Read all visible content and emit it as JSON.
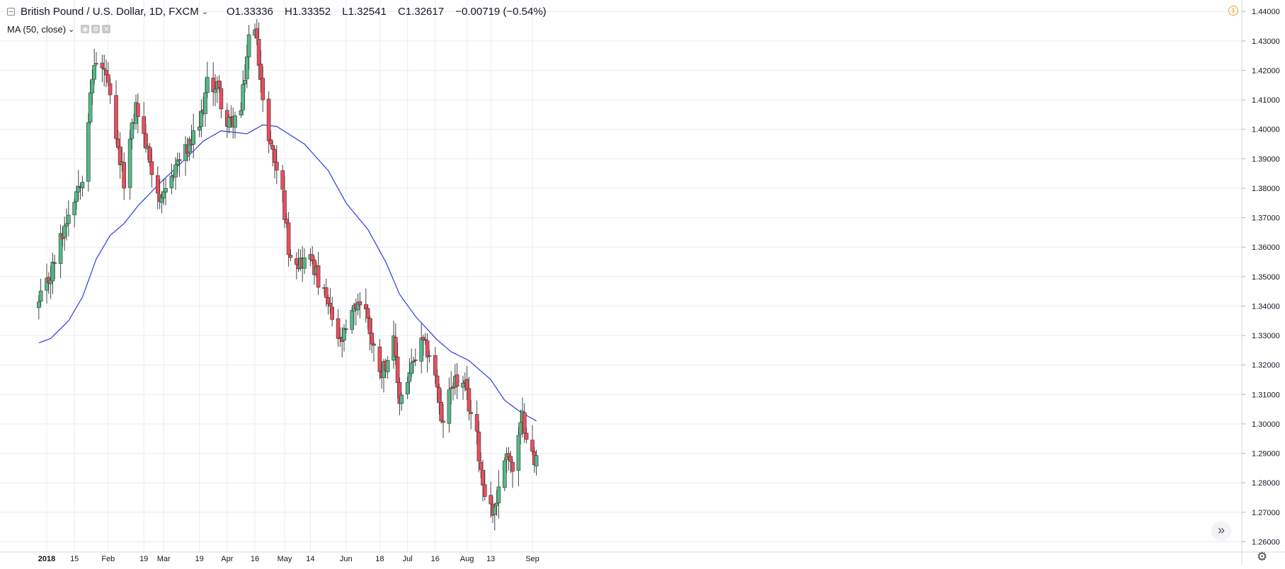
{
  "header": {
    "symbol": "British Pound / U.S. Dollar, 1D, FXCM",
    "open": "O1.33336",
    "high": "H1.33352",
    "low": "L1.32541",
    "close": "C1.32617",
    "change": "−0.00719 (−0.54%)"
  },
  "indicator": {
    "label": "MA (50, close)"
  },
  "colors": {
    "up": "#53b987",
    "down": "#eb4d5c",
    "ma": "#2b3ae0",
    "grid": "#e9ecf2",
    "text": "#131722"
  },
  "icons": {
    "collapse": "collapse-icon",
    "chevron": "chevron-down-icon",
    "warning": "warning-icon",
    "scroll": "double-chevron-right-icon",
    "settings": "gear-icon"
  },
  "chart_data": {
    "type": "candlestick",
    "ylim": [
      1.2565,
      1.4415
    ],
    "y_ticks": [
      "1.44000",
      "1.43000",
      "1.42000",
      "1.41000",
      "1.40000",
      "1.39000",
      "1.38000",
      "1.37000",
      "1.36000",
      "1.35000",
      "1.34000",
      "1.33000",
      "1.32000",
      "1.31000",
      "1.30000",
      "1.29000",
      "1.28000",
      "1.27000",
      "1.26000"
    ],
    "x_labels": [
      {
        "label": "2018",
        "date": "2018-01-01"
      },
      {
        "label": "15",
        "date": "2018-01-15"
      },
      {
        "label": "Feb",
        "date": "2018-02-01"
      },
      {
        "label": "19",
        "date": "2018-02-19"
      },
      {
        "label": "Mar",
        "date": "2018-03-01"
      },
      {
        "label": "19",
        "date": "2018-03-19"
      },
      {
        "label": "Apr",
        "date": "2018-04-02"
      },
      {
        "label": "16",
        "date": "2018-04-16"
      },
      {
        "label": "May",
        "date": "2018-05-01"
      },
      {
        "label": "14",
        "date": "2018-05-14"
      },
      {
        "label": "Jun",
        "date": "2018-06-01"
      },
      {
        "label": "18",
        "date": "2018-06-18"
      },
      {
        "label": "Jul",
        "date": "2018-07-02"
      },
      {
        "label": "16",
        "date": "2018-07-16"
      },
      {
        "label": "Aug",
        "date": "2018-08-01"
      },
      {
        "label": "13",
        "date": "2018-08-13"
      },
      {
        "label": "Sep",
        "date": "2018-09-03"
      }
    ],
    "anchors": [
      [
        "2017-12-28",
        1.3405
      ],
      [
        "2018-01-03",
        1.3505
      ],
      [
        "2018-01-12",
        1.372
      ],
      [
        "2018-01-19",
        1.385
      ],
      [
        "2018-01-25",
        1.423
      ],
      [
        "2018-01-31",
        1.4185
      ],
      [
        "2018-02-05",
        1.395
      ],
      [
        "2018-02-09",
        1.383
      ],
      [
        "2018-02-15",
        1.408
      ],
      [
        "2018-02-21",
        1.392
      ],
      [
        "2018-02-28",
        1.374
      ],
      [
        "2018-03-07",
        1.388
      ],
      [
        "2018-03-14",
        1.394
      ],
      [
        "2018-03-19",
        1.401
      ],
      [
        "2018-03-23",
        1.415
      ],
      [
        "2018-03-28",
        1.415
      ],
      [
        "2018-04-02",
        1.401
      ],
      [
        "2018-04-09",
        1.406
      ],
      [
        "2018-04-13",
        1.431
      ],
      [
        "2018-04-17",
        1.433
      ],
      [
        "2018-04-20",
        1.408
      ],
      [
        "2018-04-24",
        1.395
      ],
      [
        "2018-04-30",
        1.378
      ],
      [
        "2018-05-03",
        1.36
      ],
      [
        "2018-05-08",
        1.355
      ],
      [
        "2018-05-15",
        1.356
      ],
      [
        "2018-05-18",
        1.348
      ],
      [
        "2018-05-22",
        1.342
      ],
      [
        "2018-05-29",
        1.327
      ],
      [
        "2018-06-01",
        1.331
      ],
      [
        "2018-06-07",
        1.342
      ],
      [
        "2018-06-12",
        1.337
      ],
      [
        "2018-06-14",
        1.327
      ],
      [
        "2018-06-19",
        1.318
      ],
      [
        "2018-06-25",
        1.327
      ],
      [
        "2018-06-28",
        1.308
      ],
      [
        "2018-07-03",
        1.317
      ],
      [
        "2018-07-09",
        1.327
      ],
      [
        "2018-07-13",
        1.324
      ],
      [
        "2018-07-17",
        1.313
      ],
      [
        "2018-07-19",
        1.299
      ],
      [
        "2018-07-25",
        1.315
      ],
      [
        "2018-07-31",
        1.312
      ],
      [
        "2018-08-06",
        1.295
      ],
      [
        "2018-08-09",
        1.28
      ],
      [
        "2018-08-14",
        1.27
      ],
      [
        "2018-08-17",
        1.277
      ],
      [
        "2018-08-21",
        1.292
      ],
      [
        "2018-08-24",
        1.284
      ],
      [
        "2018-08-29",
        1.302
      ],
      [
        "2018-08-31",
        1.2975
      ],
      [
        "2018-09-04",
        1.286
      ],
      [
        "2018-09-05",
        1.288
      ]
    ],
    "ma_anchors": [
      [
        "2017-12-28",
        1.3275
      ],
      [
        "2018-01-03",
        1.329
      ],
      [
        "2018-01-12",
        1.335
      ],
      [
        "2018-01-19",
        1.343
      ],
      [
        "2018-01-26",
        1.356
      ],
      [
        "2018-02-02",
        1.364
      ],
      [
        "2018-02-09",
        1.368
      ],
      [
        "2018-02-16",
        1.374
      ],
      [
        "2018-02-26",
        1.381
      ],
      [
        "2018-03-12",
        1.39
      ],
      [
        "2018-03-21",
        1.396
      ],
      [
        "2018-03-30",
        1.3995
      ],
      [
        "2018-04-12",
        1.3985
      ],
      [
        "2018-04-20",
        1.4015
      ],
      [
        "2018-04-27",
        1.401
      ],
      [
        "2018-05-11",
        1.395
      ],
      [
        "2018-05-23",
        1.386
      ],
      [
        "2018-06-01",
        1.375
      ],
      [
        "2018-06-12",
        1.366
      ],
      [
        "2018-06-21",
        1.355
      ],
      [
        "2018-06-28",
        1.344
      ],
      [
        "2018-07-06",
        1.3365
      ],
      [
        "2018-07-17",
        1.3285
      ],
      [
        "2018-07-24",
        1.3245
      ],
      [
        "2018-08-02",
        1.3215
      ],
      [
        "2018-08-13",
        1.315
      ],
      [
        "2018-08-20",
        1.308
      ],
      [
        "2018-08-28",
        1.304
      ],
      [
        "2018-09-05",
        1.301
      ]
    ]
  }
}
